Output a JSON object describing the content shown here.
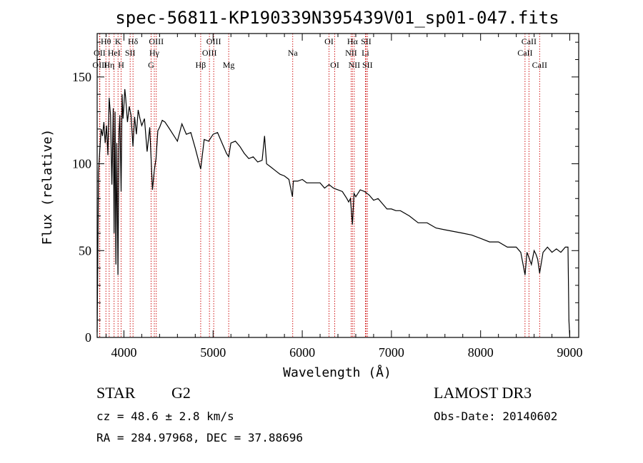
{
  "chart_data": {
    "type": "line",
    "title": "spec-56811-KP190339N395439V01_sp01-047.fits",
    "xlabel": "Wavelength (Å)",
    "ylabel": "Flux (relative)",
    "xlim": [
      3700,
      9100
    ],
    "ylim": [
      0,
      175
    ],
    "xticks": [
      4000,
      5000,
      6000,
      7000,
      8000,
      9000
    ],
    "yticks": [
      0,
      50,
      100,
      150
    ],
    "grid": false,
    "series": [
      {
        "name": "flux",
        "x": [
          3700,
          3715,
          3730,
          3745,
          3760,
          3775,
          3790,
          3805,
          3820,
          3835,
          3850,
          3865,
          3880,
          3890,
          3900,
          3910,
          3920,
          3933,
          3945,
          3955,
          3968,
          3980,
          3990,
          4000,
          4010,
          4020,
          4040,
          4060,
          4080,
          4101,
          4120,
          4140,
          4160,
          4180,
          4200,
          4230,
          4260,
          4290,
          4320,
          4340,
          4360,
          4380,
          4400,
          4430,
          4460,
          4500,
          4550,
          4600,
          4650,
          4700,
          4750,
          4800,
          4861,
          4900,
          4950,
          5000,
          5050,
          5100,
          5150,
          5175,
          5200,
          5250,
          5300,
          5350,
          5400,
          5450,
          5500,
          5550,
          5577,
          5600,
          5650,
          5700,
          5750,
          5800,
          5850,
          5890,
          5900,
          5950,
          6000,
          6050,
          6100,
          6150,
          6200,
          6250,
          6300,
          6350,
          6400,
          6450,
          6500,
          6520,
          6540,
          6563,
          6580,
          6600,
          6650,
          6700,
          6750,
          6800,
          6850,
          6900,
          6950,
          7000,
          7050,
          7100,
          7200,
          7300,
          7400,
          7500,
          7600,
          7700,
          7800,
          7900,
          8000,
          8100,
          8200,
          8300,
          8400,
          8450,
          8498,
          8520,
          8542,
          8570,
          8600,
          8620,
          8640,
          8662,
          8700,
          8750,
          8800,
          8850,
          8900,
          8950,
          8980,
          8990,
          9000
        ],
        "y": [
          3,
          95,
          108,
          120,
          116,
          124,
          112,
          122,
          105,
          138,
          128,
          88,
          132,
          60,
          130,
          42,
          112,
          36,
          118,
          128,
          84,
          140,
          126,
          133,
          143,
          138,
          124,
          133,
          128,
          110,
          127,
          117,
          131,
          126,
          122,
          126,
          107,
          121,
          85,
          96,
          103,
          119,
          121,
          125,
          124,
          121,
          117,
          113,
          123,
          117,
          118,
          109,
          97,
          114,
          113,
          117,
          118,
          112,
          106,
          104,
          112,
          113,
          110,
          106,
          103,
          104,
          101,
          102,
          116,
          100,
          98,
          96,
          94,
          93,
          91,
          81,
          90,
          90,
          91,
          89,
          89,
          89,
          89,
          86,
          88,
          86,
          85,
          84,
          80,
          78,
          80,
          65,
          83,
          81,
          85,
          84,
          82,
          79,
          80,
          77,
          74,
          74,
          73,
          73,
          70,
          66,
          66,
          63,
          62,
          61,
          60,
          59,
          57,
          55,
          55,
          52,
          52,
          49,
          36,
          49,
          46,
          42,
          50,
          48,
          45,
          37,
          49,
          52,
          49,
          51,
          49,
          52,
          52,
          10,
          0
        ]
      }
    ],
    "lines": [
      {
        "name": "Hθ",
        "wl": 3798,
        "row": 1
      },
      {
        "name": "OII",
        "wl": 3727,
        "row": 2
      },
      {
        "name": "OIII",
        "wl": 3730,
        "row": 3
      },
      {
        "name": "K",
        "wl": 3934,
        "row": 1
      },
      {
        "name": "HeI",
        "wl": 3890,
        "row": 2
      },
      {
        "name": "Hη",
        "wl": 3835,
        "row": 3
      },
      {
        "name": "SII",
        "wl": 4070,
        "row": 2
      },
      {
        "name": "H",
        "wl": 3969,
        "row": 3
      },
      {
        "name": "Hδ",
        "wl": 4102,
        "row": 1
      },
      {
        "name": "OIII",
        "wl": 4363,
        "row": 1
      },
      {
        "name": "Hγ",
        "wl": 4341,
        "row": 2
      },
      {
        "name": "G",
        "wl": 4305,
        "row": 3
      },
      {
        "name": "Hβ",
        "wl": 4861,
        "row": 3
      },
      {
        "name": "OIII",
        "wl": 5007,
        "row": 1
      },
      {
        "name": "OIII",
        "wl": 4959,
        "row": 2
      },
      {
        "name": "Mg",
        "wl": 5175,
        "row": 3
      },
      {
        "name": "Na",
        "wl": 5893,
        "row": 2
      },
      {
        "name": "OI",
        "wl": 6300,
        "row": 1
      },
      {
        "name": "OI",
        "wl": 6364,
        "row": 3
      },
      {
        "name": "Hα",
        "wl": 6563,
        "row": 1
      },
      {
        "name": "NII",
        "wl": 6548,
        "row": 2
      },
      {
        "name": "NII",
        "wl": 6583,
        "row": 3
      },
      {
        "name": "SII",
        "wl": 6716,
        "row": 1
      },
      {
        "name": "Li",
        "wl": 6708,
        "row": 2
      },
      {
        "name": "SII",
        "wl": 6731,
        "row": 3
      },
      {
        "name": "CaII",
        "wl": 8542,
        "row": 1
      },
      {
        "name": "CaII",
        "wl": 8498,
        "row": 2
      },
      {
        "name": "CaII",
        "wl": 8662,
        "row": 3
      }
    ]
  },
  "info": {
    "class_label": "STAR",
    "subclass": "G2",
    "survey": "LAMOST DR3",
    "cz": "cz = 48.6 ± 2.8 km/s",
    "obs_date": "Obs-Date: 20140602",
    "coords": "RA = 284.97968, DEC =  37.88696"
  },
  "colors": {
    "spectrum": "#000000",
    "line_marker": "#cc0000"
  }
}
